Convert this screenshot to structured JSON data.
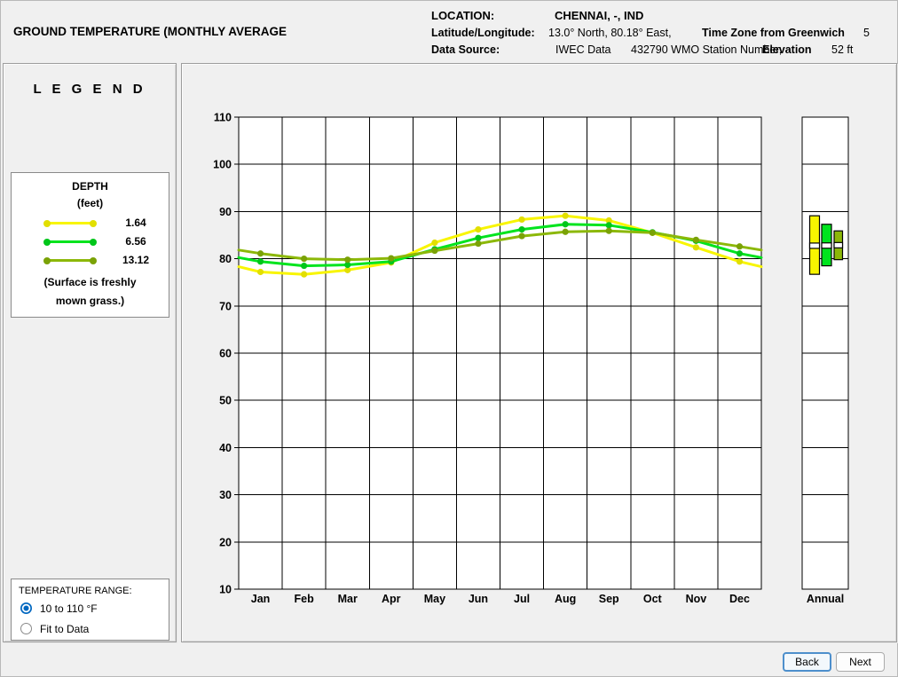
{
  "header": {
    "title": "GROUND TEMPERATURE (MONTHLY AVERAGE",
    "location_label": "LOCATION:",
    "location_value": "CHENNAI, -, IND",
    "latlong_label": "Latitude/Longitude:",
    "latlong_value": "13.0° North, 80.18° East,",
    "timezone_label": "Time Zone from Greenwich",
    "timezone_value": "5",
    "datasource_label": "Data Source:",
    "datasource_value": "IWEC Data",
    "station_value": "432790 WMO Station Number,",
    "elevation_label": "Elevation",
    "elevation_value": "52 ft"
  },
  "legend": {
    "title": "L E G E N D",
    "box_title": "DEPTH",
    "box_subtitle": "(feet)",
    "note_line1": "(Surface is freshly",
    "note_line2": "mown grass.)"
  },
  "temperature_range": {
    "label": "TEMPERATURE RANGE:",
    "accent_color": "#0067c0",
    "options": [
      {
        "label": "10 to 110 °F",
        "selected": true
      },
      {
        "label": "Fit to Data",
        "selected": false
      }
    ]
  },
  "chart_data": {
    "type": "line",
    "title": "GROUND TEMPERATURE (MONTHLY AVERAGE",
    "categories": [
      "Jan",
      "Feb",
      "Mar",
      "Apr",
      "May",
      "Jun",
      "Jul",
      "Aug",
      "Sep",
      "Oct",
      "Nov",
      "Dec"
    ],
    "y_ticks": [
      110,
      100,
      90,
      80,
      70,
      60,
      50,
      40,
      30,
      20,
      10
    ],
    "ylim": [
      10,
      110
    ],
    "unit": "°F",
    "grid": true,
    "annual_label": "Annual",
    "series": [
      {
        "name": "1.64",
        "color": "#f8f500",
        "marker_color": "#e2df00",
        "values": [
          77.2,
          76.7,
          77.6,
          79.2,
          83.4,
          86.2,
          88.3,
          89.1,
          88.1,
          85.5,
          82.4,
          79.4
        ]
      },
      {
        "name": "6.56",
        "color": "#00e41e",
        "marker_color": "#00c61a",
        "values": [
          79.4,
          78.5,
          78.7,
          79.4,
          82.0,
          84.4,
          86.2,
          87.3,
          87.1,
          85.6,
          83.8,
          81.1
        ]
      },
      {
        "name": "13.12",
        "color": "#8cb808",
        "marker_color": "#7aa206",
        "values": [
          81.1,
          80.0,
          79.8,
          80.1,
          81.7,
          83.2,
          84.8,
          85.7,
          85.9,
          85.5,
          84.0,
          82.6
        ]
      }
    ]
  },
  "footer": {
    "back_label": "Back",
    "next_label": "Next"
  }
}
